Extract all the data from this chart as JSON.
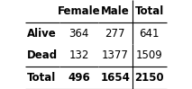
{
  "col_headers": [
    "Female",
    "Male",
    "Total"
  ],
  "row_headers": [
    "Alive",
    "Dead",
    "Total"
  ],
  "values": [
    [
      364,
      277,
      641
    ],
    [
      132,
      1377,
      1509
    ],
    [
      496,
      1654,
      2150
    ]
  ],
  "bg_color": "#ffffff",
  "border_color": "#000000",
  "fontsize": 8.5,
  "figsize": [
    2.13,
    0.99
  ],
  "dpi": 100
}
